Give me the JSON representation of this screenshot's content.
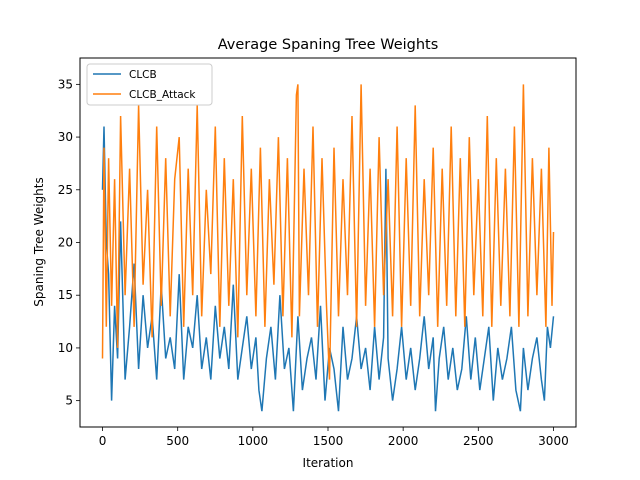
{
  "chart_data": {
    "type": "line",
    "title": "Average Spaning Tree Weights",
    "xlabel": "Iteration",
    "ylabel": "Spaning Tree Weights",
    "xlim": [
      -150,
      3150
    ],
    "ylim": [
      2.5,
      37.5
    ],
    "xticks": [
      0,
      500,
      1000,
      1500,
      2000,
      2500,
      3000
    ],
    "yticks": [
      5,
      10,
      15,
      20,
      25,
      30,
      35
    ],
    "grid": false,
    "legend_position": "upper-left",
    "series": [
      {
        "name": "CLCB",
        "color": "#1f77b4",
        "x": [
          0,
          10,
          25,
          40,
          60,
          80,
          100,
          120,
          150,
          180,
          210,
          240,
          270,
          300,
          330,
          360,
          390,
          420,
          450,
          480,
          510,
          540,
          570,
          600,
          630,
          660,
          690,
          720,
          750,
          780,
          810,
          840,
          870,
          900,
          930,
          960,
          990,
          1020,
          1040,
          1060,
          1090,
          1120,
          1150,
          1180,
          1210,
          1240,
          1270,
          1300,
          1330,
          1360,
          1390,
          1420,
          1450,
          1480,
          1510,
          1540,
          1570,
          1600,
          1630,
          1660,
          1690,
          1720,
          1750,
          1780,
          1810,
          1840,
          1870,
          1885,
          1900,
          1930,
          1960,
          1990,
          2020,
          2050,
          2080,
          2110,
          2140,
          2170,
          2200,
          2215,
          2240,
          2270,
          2300,
          2330,
          2360,
          2390,
          2420,
          2450,
          2480,
          2510,
          2540,
          2570,
          2600,
          2630,
          2660,
          2690,
          2720,
          2750,
          2780,
          2800,
          2830,
          2860,
          2890,
          2920,
          2940,
          2960,
          2980,
          3000
        ],
        "values": [
          25,
          31,
          20,
          17,
          5,
          14,
          9,
          22,
          7,
          12,
          18,
          8,
          15,
          10,
          13,
          7,
          16,
          9,
          11,
          8,
          17,
          7,
          12,
          10,
          15,
          8,
          11,
          7,
          14,
          9,
          12,
          8,
          16,
          7,
          10,
          13,
          8,
          11,
          6,
          4,
          9,
          12,
          7,
          15,
          8,
          10,
          4,
          13,
          6,
          9,
          11,
          7,
          14,
          5,
          10,
          8,
          4,
          12,
          7,
          9,
          13,
          8,
          10,
          6,
          12,
          7,
          11,
          27,
          9,
          5,
          8,
          12,
          7,
          10,
          6,
          9,
          13,
          8,
          11,
          4,
          9,
          12,
          7,
          10,
          6,
          8,
          13,
          7,
          11,
          6,
          9,
          12,
          5,
          10,
          7,
          9,
          12,
          6,
          4,
          10,
          6,
          9,
          11,
          7,
          5,
          12,
          10,
          13
        ]
      },
      {
        "name": "CLCB_Attack",
        "color": "#ff7f0e",
        "x": [
          0,
          10,
          25,
          40,
          60,
          80,
          100,
          120,
          150,
          180,
          210,
          240,
          270,
          300,
          330,
          360,
          390,
          420,
          450,
          480,
          510,
          540,
          570,
          600,
          630,
          660,
          690,
          720,
          750,
          780,
          810,
          840,
          870,
          900,
          930,
          960,
          990,
          1020,
          1050,
          1080,
          1110,
          1140,
          1170,
          1200,
          1230,
          1260,
          1290,
          1300,
          1310,
          1340,
          1370,
          1400,
          1430,
          1460,
          1490,
          1510,
          1540,
          1570,
          1600,
          1630,
          1660,
          1690,
          1720,
          1750,
          1780,
          1810,
          1840,
          1870,
          1900,
          1930,
          1960,
          1990,
          2020,
          2050,
          2080,
          2110,
          2140,
          2170,
          2200,
          2230,
          2260,
          2290,
          2320,
          2350,
          2380,
          2410,
          2440,
          2470,
          2500,
          2530,
          2560,
          2590,
          2620,
          2650,
          2680,
          2710,
          2740,
          2770,
          2800,
          2830,
          2860,
          2890,
          2920,
          2950,
          2970,
          2990,
          3000
        ],
        "values": [
          9,
          29,
          12,
          28,
          14,
          26,
          10,
          32,
          15,
          27,
          12,
          33,
          16,
          25,
          11,
          31,
          14,
          28,
          13,
          26,
          30,
          12,
          27,
          15,
          33,
          13,
          25,
          17,
          31,
          12,
          28,
          14,
          26,
          11,
          32,
          15,
          27,
          13,
          29,
          12,
          26,
          16,
          30,
          13,
          28,
          11,
          34,
          35,
          13,
          27,
          15,
          31,
          12,
          28,
          14,
          7,
          29,
          13,
          26,
          15,
          32,
          12,
          35,
          14,
          27,
          12,
          30,
          15,
          26,
          13,
          31,
          12,
          28,
          14,
          33,
          13,
          26,
          15,
          29,
          12,
          27,
          14,
          31,
          13,
          28,
          12,
          30,
          15,
          26,
          13,
          32,
          12,
          28,
          14,
          27,
          13,
          31,
          12,
          35,
          13,
          28,
          15,
          27,
          12,
          29,
          14,
          21
        ]
      }
    ]
  }
}
